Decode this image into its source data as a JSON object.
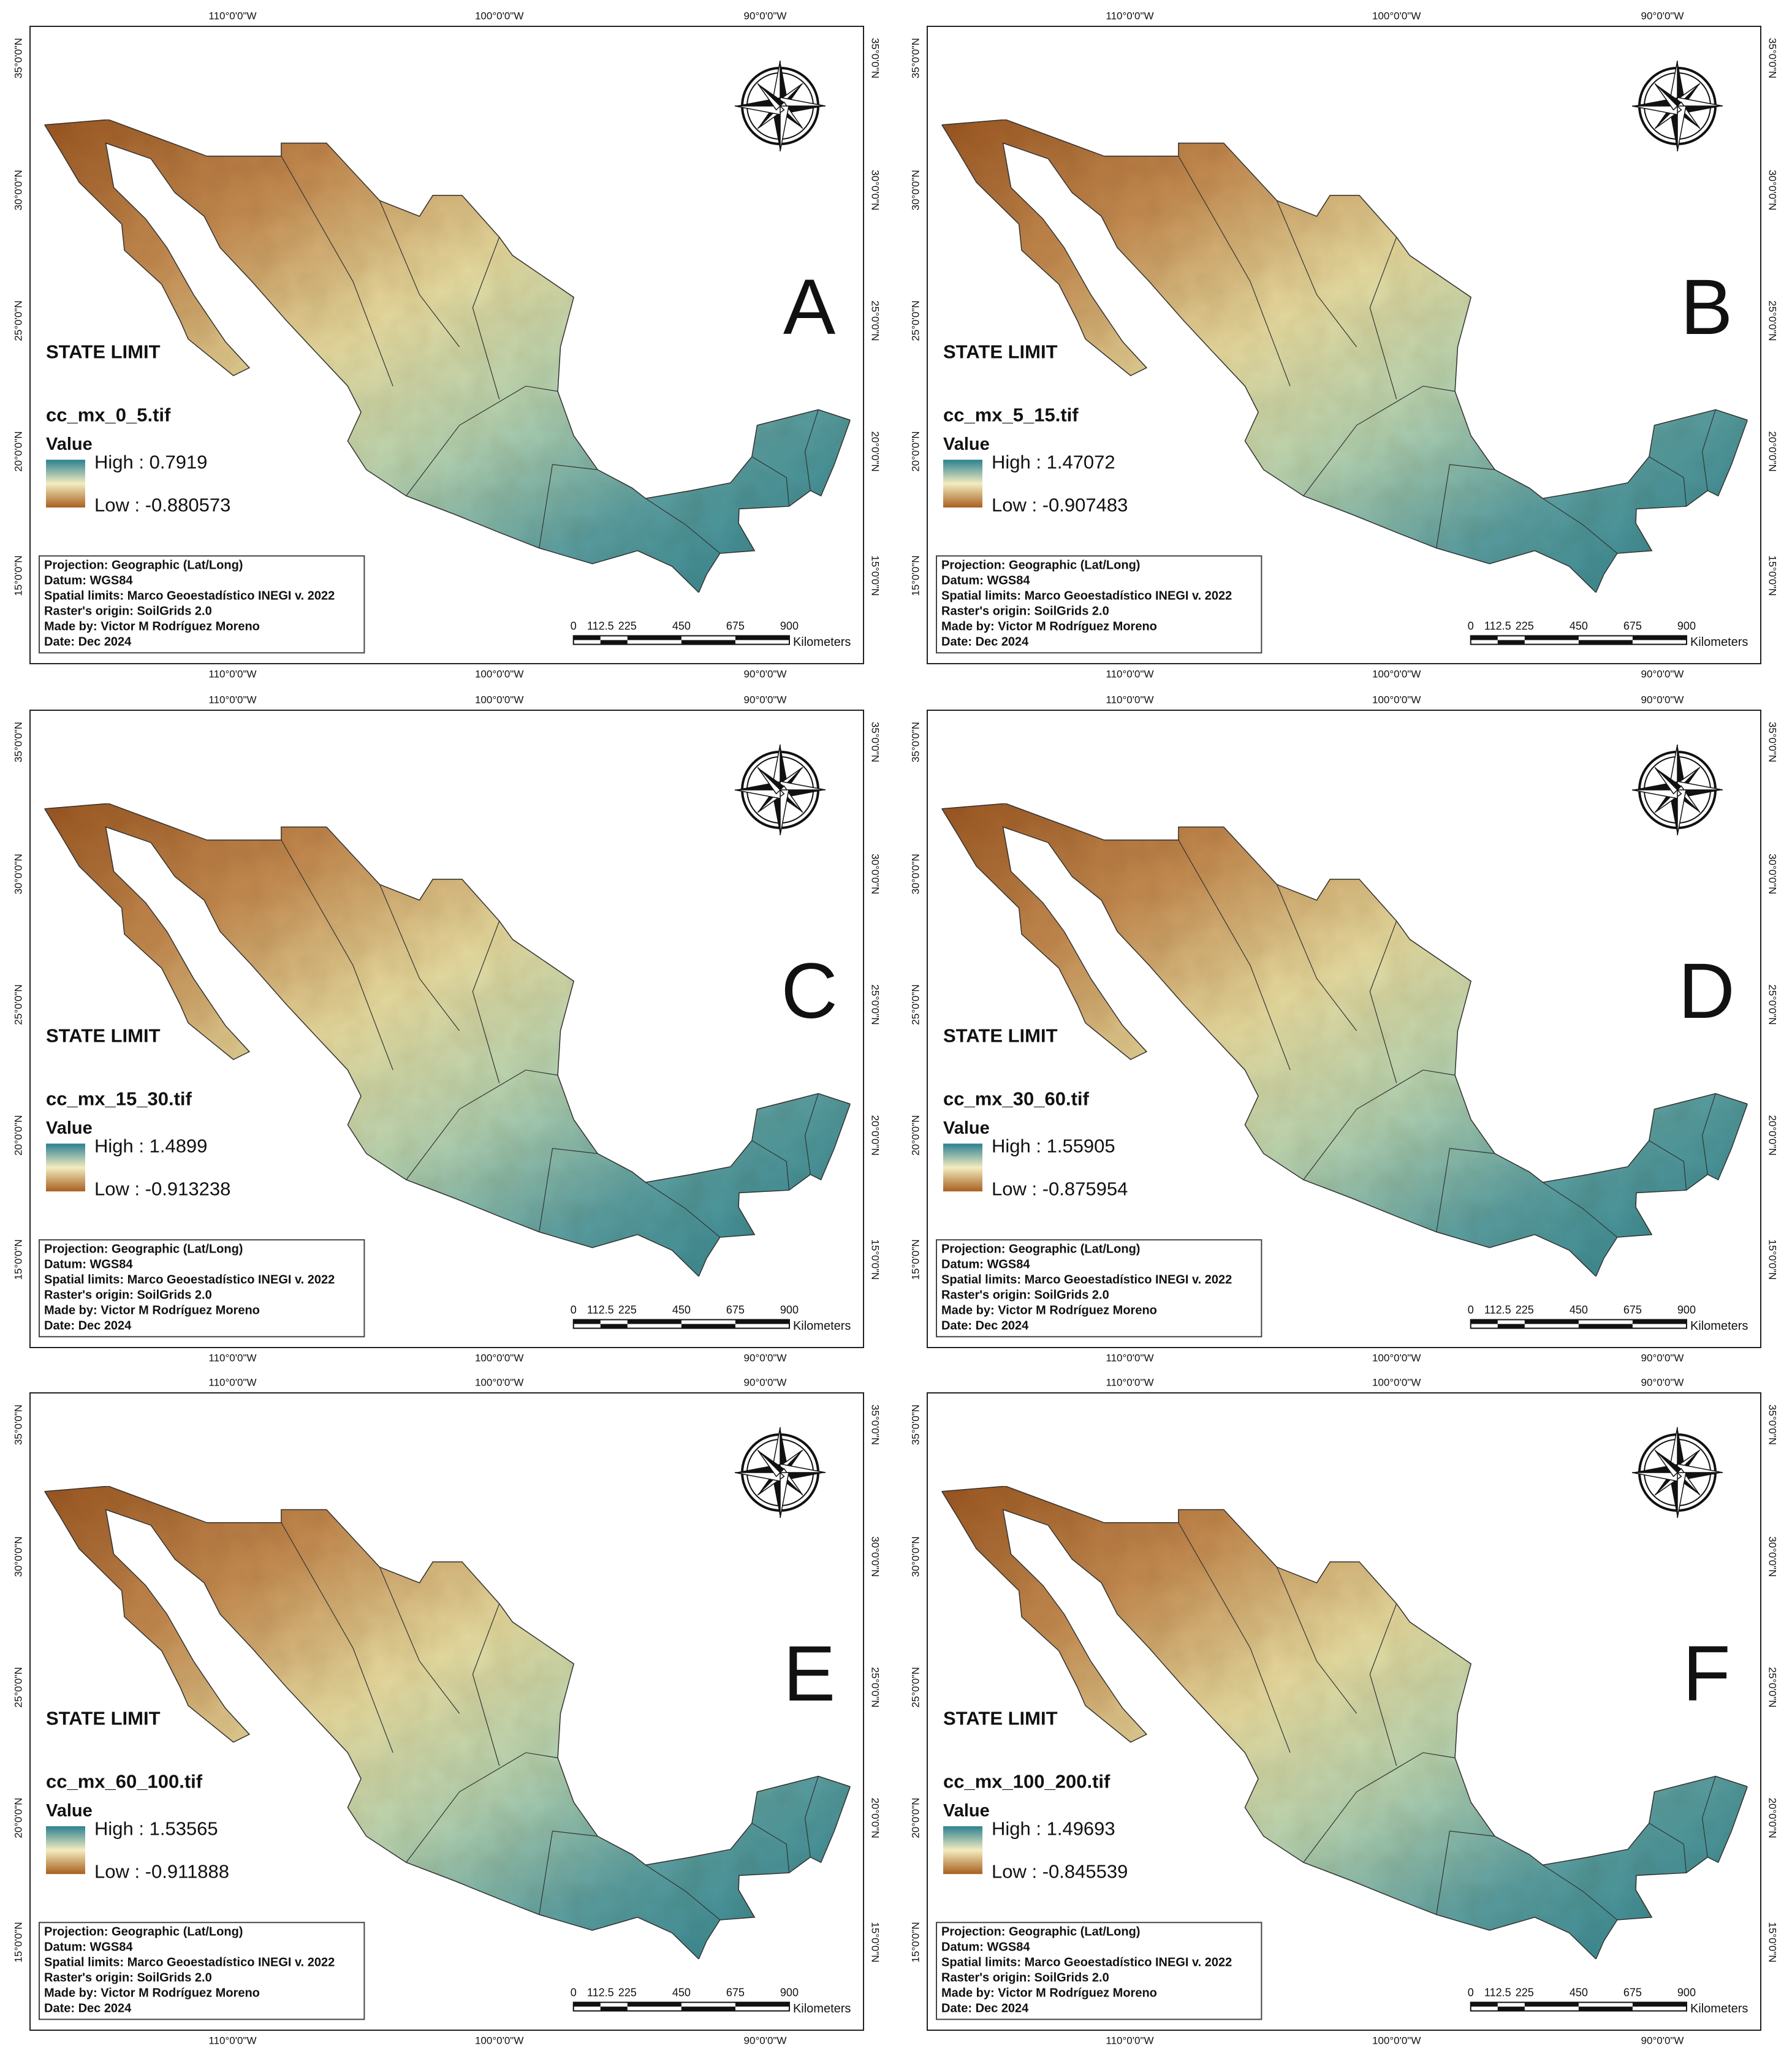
{
  "graticule": {
    "lon": [
      "110°0'0\"W",
      "100°0'0\"W",
      "90°0'0\"W"
    ],
    "lat": [
      "35°0'0\"N",
      "30°0'0\"N",
      "25°0'0\"N",
      "20°0'0\"N",
      "15°0'0\"N"
    ]
  },
  "legend": {
    "state_limit": "STATE LIMIT",
    "value": "Value"
  },
  "info": [
    "Projection: Geographic (Lat/Long)",
    "Datum: WGS84",
    "Spatial limits: Marco Geoestadístico INEGI v. 2022",
    "Raster's origin: SoilGrids 2.0",
    "Made by: Victor M Rodríguez Moreno",
    "Date: Dec 2024"
  ],
  "scale": {
    "labels": [
      "0",
      "112.5",
      "225",
      "450",
      "675",
      "900"
    ],
    "unit": "Kilometers"
  },
  "panels": [
    {
      "letter": "A",
      "file": "cc_mx_0_5.tif",
      "high": "High : 0.7919",
      "low": "Low : -0.880573"
    },
    {
      "letter": "B",
      "file": "cc_mx_5_15.tif",
      "high": "High : 1.47072",
      "low": "Low : -0.907483"
    },
    {
      "letter": "C",
      "file": "cc_mx_15_30.tif",
      "high": "High : 1.4899",
      "low": "Low : -0.913238"
    },
    {
      "letter": "D",
      "file": "cc_mx_30_60.tif",
      "high": "High : 1.55905",
      "low": "Low : -0.875954"
    },
    {
      "letter": "E",
      "file": "cc_mx_60_100.tif",
      "high": "High : 1.53565",
      "low": "Low : -0.911888"
    },
    {
      "letter": "F",
      "file": "cc_mx_100_200.tif",
      "high": "High : 1.49693",
      "low": "Low : -0.845539"
    }
  ]
}
